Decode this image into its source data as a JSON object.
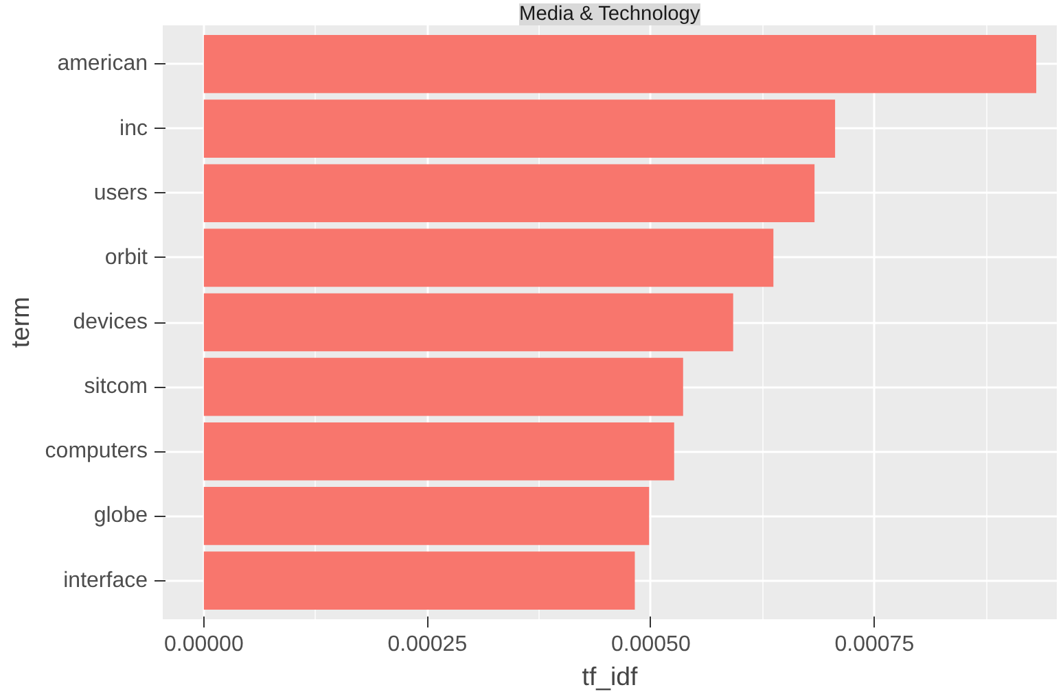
{
  "chart_data": {
    "type": "bar",
    "orientation": "horizontal",
    "title": "Media & Technology",
    "xlabel": "tf_idf",
    "ylabel": "term",
    "categories": [
      "american",
      "inc",
      "users",
      "orbit",
      "devices",
      "sitcom",
      "computers",
      "globe",
      "interface"
    ],
    "values": [
      0.000931,
      0.000706,
      0.000683,
      0.000637,
      0.000592,
      0.000536,
      0.000526,
      0.000498,
      0.000482
    ],
    "color": "#f8766d",
    "xlim": [
      -4.6e-05,
      0.000954
    ],
    "xticks": [
      {
        "value": 0,
        "label": "0.00000"
      },
      {
        "value": 0.00025,
        "label": "0.00025"
      },
      {
        "value": 0.0005,
        "label": "0.00050"
      },
      {
        "value": 0.00075,
        "label": "0.00075"
      }
    ],
    "grid": true
  }
}
